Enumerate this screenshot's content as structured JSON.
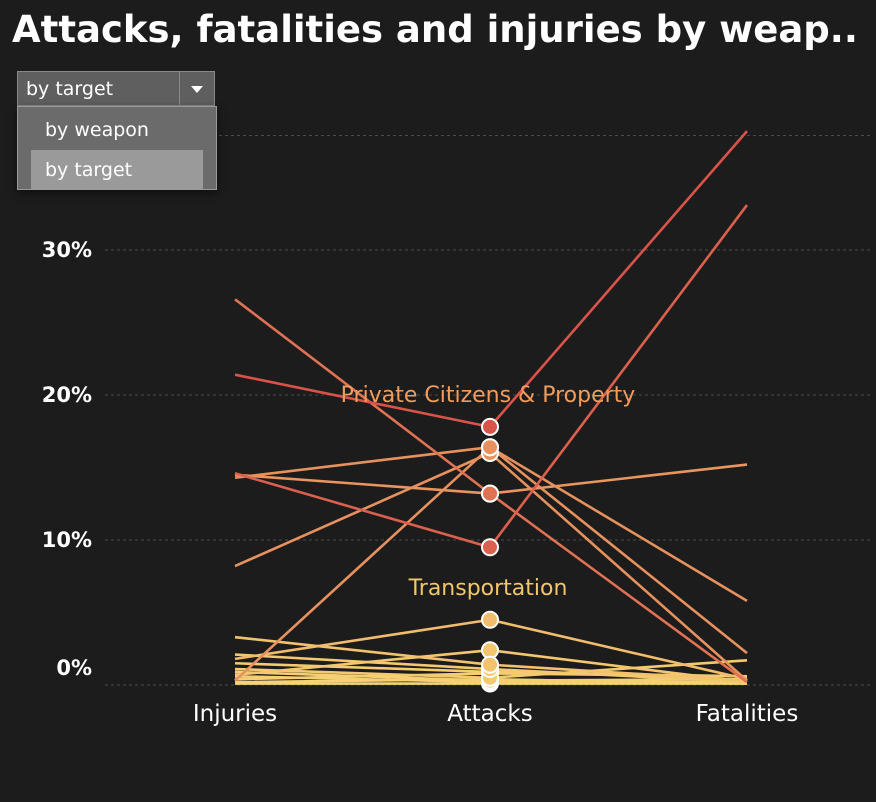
{
  "title": "Attacks, fatalities and injuries by weap..",
  "filter": {
    "selected": "by target",
    "options": [
      "by weapon",
      "by target"
    ],
    "open": true
  },
  "colors": {
    "background": "#1c1c1c",
    "grid": "#4a4a4a",
    "scale_low": "#f7d774",
    "scale_high": "#d9534a",
    "label_private": "#f29c5b",
    "label_transport": "#f2c66a"
  },
  "chart_data": {
    "type": "line",
    "x": [
      "Injuries",
      "Attacks",
      "Fatalities"
    ],
    "y_ticks": [
      "0%",
      "10%",
      "20%",
      "30%"
    ],
    "ylim": [
      -1,
      40
    ],
    "grid": true,
    "series": [
      {
        "name": "Private Citizens & Property",
        "values": [
          21.4,
          17.8,
          38.2
        ]
      },
      {
        "values": [
          26.6,
          13.2,
          0.2
        ]
      },
      {
        "values": [
          14.3,
          16.4,
          2.2
        ]
      },
      {
        "values": [
          8.2,
          16.0,
          0.3
        ]
      },
      {
        "values": [
          14.6,
          9.5,
          33.1
        ]
      },
      {
        "values": [
          14.5,
          13.2,
          15.2
        ]
      },
      {
        "name": "Transportation",
        "values": [
          0.3,
          16.4,
          5.8
        ]
      },
      {
        "values": [
          1.8,
          4.5,
          0.4
        ]
      },
      {
        "values": [
          3.3,
          1.4,
          0.3
        ]
      },
      {
        "values": [
          0.7,
          2.4,
          0.2
        ]
      },
      {
        "values": [
          1.5,
          0.9,
          0.6
        ]
      },
      {
        "values": [
          2.1,
          1.1,
          0.2
        ]
      },
      {
        "values": [
          1.1,
          0.5,
          1.7
        ]
      },
      {
        "values": [
          0.9,
          0.3,
          0.4
        ]
      },
      {
        "values": [
          0.4,
          0.8,
          0.6
        ]
      },
      {
        "values": [
          0.6,
          0.2,
          0.2
        ]
      },
      {
        "values": [
          0.2,
          0.4,
          0.1
        ]
      },
      {
        "values": [
          0.1,
          0.1,
          0.1
        ]
      }
    ],
    "annotations": [
      {
        "text": "Private Citizens & Property",
        "x": "Attacks",
        "y": 20.0
      },
      {
        "text": "Transportation",
        "x": "Attacks",
        "y": 6.7
      }
    ]
  }
}
